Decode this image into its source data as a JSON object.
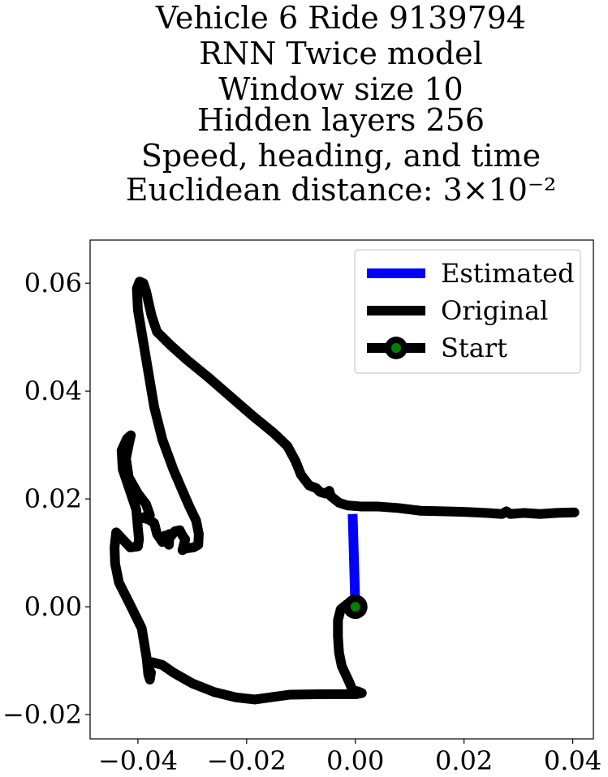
{
  "chart_data": {
    "type": "line",
    "title_lines": [
      "Vehicle 6 Ride 9139794",
      "RNN Twice model",
      "Window size 10",
      "Hidden layers 256",
      "Speed, heading, and time",
      "Euclidean distance: 3×10⁻²"
    ],
    "xlabel": "",
    "ylabel": "",
    "xlim": [
      -0.0488,
      0.0438
    ],
    "ylim": [
      -0.0245,
      0.068
    ],
    "x_ticks": [
      -0.04,
      -0.02,
      0.0,
      0.02,
      0.04
    ],
    "x_tick_labels": [
      "−0.04",
      "−0.02",
      "0.00",
      "0.02",
      "0.04"
    ],
    "y_ticks": [
      -0.02,
      0.0,
      0.02,
      0.04,
      0.06
    ],
    "y_tick_labels": [
      "−0.02",
      "0.00",
      "0.02",
      "0.04",
      "0.06"
    ],
    "grid": false,
    "legend_position": "top-right",
    "series": [
      {
        "name": "Estimated",
        "color": "#0000ff",
        "points": [
          [
            0.0,
            0.0
          ],
          [
            -0.0001,
            0.0035
          ],
          [
            -0.0002,
            0.007
          ],
          [
            -0.0003,
            0.0105
          ],
          [
            -0.0004,
            0.014
          ],
          [
            -0.0005,
            0.0172
          ]
        ]
      },
      {
        "name": "Original",
        "color": "#000000",
        "points": [
          [
            0.0,
            0.0
          ],
          [
            -0.0015,
            0.0005
          ],
          [
            -0.0027,
            -0.0005
          ],
          [
            -0.0032,
            -0.0025
          ],
          [
            -0.0032,
            -0.0055
          ],
          [
            -0.003,
            -0.0085
          ],
          [
            -0.0025,
            -0.011
          ],
          [
            -0.0012,
            -0.0138
          ],
          [
            -0.0005,
            -0.0155
          ],
          [
            0.0005,
            -0.0157
          ],
          [
            0.0012,
            -0.016
          ],
          [
            0.0002,
            -0.0162
          ],
          [
            -0.005,
            -0.0162
          ],
          [
            -0.012,
            -0.0163
          ],
          [
            -0.0185,
            -0.0172
          ],
          [
            -0.022,
            -0.0168
          ],
          [
            -0.026,
            -0.0158
          ],
          [
            -0.03,
            -0.0142
          ],
          [
            -0.0335,
            -0.0122
          ],
          [
            -0.0355,
            -0.0108
          ],
          [
            -0.0373,
            -0.0103
          ],
          [
            -0.0382,
            -0.0112
          ],
          [
            -0.0376,
            -0.0122
          ],
          [
            -0.0378,
            -0.0135
          ],
          [
            -0.0381,
            -0.0125
          ],
          [
            -0.0384,
            -0.0095
          ],
          [
            -0.0393,
            -0.004
          ],
          [
            -0.0415,
            0.0005
          ],
          [
            -0.0435,
            0.0045
          ],
          [
            -0.0442,
            0.008
          ],
          [
            -0.0443,
            0.011
          ],
          [
            -0.044,
            0.0138
          ],
          [
            -0.0428,
            0.0125
          ],
          [
            -0.0414,
            0.011
          ],
          [
            -0.04,
            0.0112
          ],
          [
            -0.0398,
            0.0125
          ],
          [
            -0.04,
            0.0145
          ],
          [
            -0.0403,
            0.018
          ],
          [
            -0.0413,
            0.021
          ],
          [
            -0.0428,
            0.0255
          ],
          [
            -0.043,
            0.029
          ],
          [
            -0.042,
            0.0312
          ],
          [
            -0.0413,
            0.0318
          ],
          [
            -0.0416,
            0.0305
          ],
          [
            -0.0422,
            0.0275
          ],
          [
            -0.0417,
            0.024
          ],
          [
            -0.04,
            0.021
          ],
          [
            -0.0385,
            0.019
          ],
          [
            -0.0378,
            0.017
          ],
          [
            -0.0392,
            0.0165
          ],
          [
            -0.038,
            0.0162
          ],
          [
            -0.037,
            0.0155
          ],
          [
            -0.0365,
            0.0135
          ],
          [
            -0.0355,
            0.012
          ],
          [
            -0.035,
            0.0132
          ],
          [
            -0.0343,
            0.0115
          ],
          [
            -0.0342,
            0.0135
          ],
          [
            -0.034,
            0.013
          ],
          [
            -0.0332,
            0.014
          ],
          [
            -0.0323,
            0.0142
          ],
          [
            -0.0318,
            0.0132
          ],
          [
            -0.0313,
            0.0125
          ],
          [
            -0.0318,
            0.0105
          ],
          [
            -0.0313,
            0.0108
          ],
          [
            -0.0298,
            0.011
          ],
          [
            -0.0289,
            0.0115
          ],
          [
            -0.0288,
            0.0135
          ],
          [
            -0.0293,
            0.016
          ],
          [
            -0.0305,
            0.0185
          ],
          [
            -0.0318,
            0.0215
          ],
          [
            -0.0335,
            0.0255
          ],
          [
            -0.0355,
            0.031
          ],
          [
            -0.037,
            0.037
          ],
          [
            -0.038,
            0.043
          ],
          [
            -0.039,
            0.049
          ],
          [
            -0.04,
            0.055
          ],
          [
            -0.0402,
            0.059
          ],
          [
            -0.0397,
            0.0603
          ],
          [
            -0.039,
            0.06
          ],
          [
            -0.0385,
            0.0585
          ],
          [
            -0.0375,
            0.054
          ],
          [
            -0.0365,
            0.051
          ],
          [
            -0.034,
            0.0485
          ],
          [
            -0.031,
            0.0458
          ],
          [
            -0.027,
            0.0425
          ],
          [
            -0.023,
            0.039
          ],
          [
            -0.019,
            0.0355
          ],
          [
            -0.015,
            0.0322
          ],
          [
            -0.0125,
            0.0298
          ],
          [
            -0.011,
            0.027
          ],
          [
            -0.01,
            0.0245
          ],
          [
            -0.0085,
            0.0225
          ],
          [
            -0.0072,
            0.022
          ],
          [
            -0.0065,
            0.0213
          ],
          [
            -0.0055,
            0.021
          ],
          [
            -0.0048,
            0.0215
          ],
          [
            -0.0045,
            0.0205
          ],
          [
            -0.003,
            0.0193
          ],
          [
            -0.0015,
            0.0188
          ],
          [
            0.001,
            0.0186
          ],
          [
            0.004,
            0.0186
          ],
          [
            0.008,
            0.0183
          ],
          [
            0.012,
            0.0178
          ],
          [
            0.016,
            0.0177
          ],
          [
            0.02,
            0.0176
          ],
          [
            0.024,
            0.0174
          ],
          [
            0.027,
            0.0172
          ],
          [
            0.0278,
            0.0177
          ],
          [
            0.0285,
            0.0172
          ],
          [
            0.031,
            0.0174
          ],
          [
            0.034,
            0.0172
          ],
          [
            0.037,
            0.0174
          ],
          [
            0.0403,
            0.0175
          ]
        ]
      },
      {
        "name": "Start",
        "color": "#000000",
        "marker_color": "#008000",
        "points": [
          [
            0.0,
            0.0
          ]
        ]
      }
    ]
  }
}
